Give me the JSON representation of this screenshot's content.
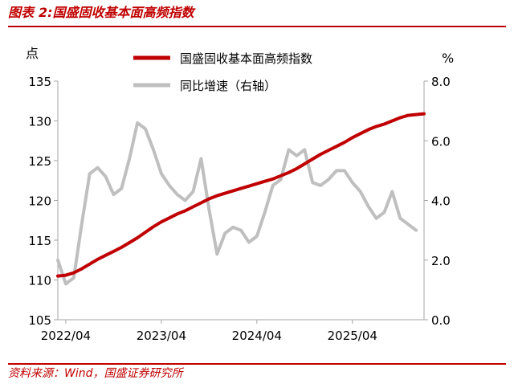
{
  "figure": {
    "label": "图表",
    "number": "2:",
    "name": "国盛固收基本面高频指数"
  },
  "source": "资料来源：Wind，国盛证券研究所",
  "colors": {
    "index_line": "#c00000",
    "yoy_line": "#bfbfbf",
    "axis": "#a6a6a6",
    "text": "#000000",
    "accent": "#c00000"
  },
  "chart_data": {
    "type": "line",
    "title": "",
    "x_ticks": [
      "2022/04",
      "2023/04",
      "2024/04",
      "2025/04"
    ],
    "x_range": [
      "2022/03",
      "2026/01"
    ],
    "left_axis": {
      "unit": "点",
      "range": [
        105,
        135
      ],
      "ticks": [
        "105",
        "110",
        "115",
        "120",
        "125",
        "130",
        "135"
      ]
    },
    "right_axis": {
      "unit": "%",
      "range": [
        0.0,
        8.0
      ],
      "ticks": [
        "0.0",
        "2.0",
        "4.0",
        "6.0",
        "8.0"
      ]
    },
    "grid": false,
    "legend_position": "top-center",
    "series": [
      {
        "name": "国盛固收基本面高频指数",
        "axis": "left",
        "x": [
          "2022/03",
          "2022/04",
          "2022/05",
          "2022/06",
          "2022/07",
          "2022/08",
          "2022/09",
          "2022/10",
          "2022/11",
          "2022/12",
          "2023/01",
          "2023/02",
          "2023/03",
          "2023/04",
          "2023/05",
          "2023/06",
          "2023/07",
          "2023/08",
          "2023/09",
          "2023/10",
          "2023/11",
          "2023/12",
          "2024/01",
          "2024/02",
          "2024/03",
          "2024/04",
          "2024/05",
          "2024/06",
          "2024/07",
          "2024/08",
          "2024/09",
          "2024/10",
          "2024/11",
          "2024/12",
          "2025/01",
          "2025/02",
          "2025/03",
          "2025/04",
          "2025/05",
          "2025/06",
          "2025/07",
          "2025/08",
          "2025/09",
          "2025/10",
          "2025/11",
          "2025/12",
          "2026/01"
        ],
        "values": [
          110.5,
          110.6,
          110.9,
          111.4,
          112.0,
          112.6,
          113.1,
          113.6,
          114.1,
          114.7,
          115.3,
          116.0,
          116.7,
          117.3,
          117.8,
          118.3,
          118.7,
          119.2,
          119.7,
          120.2,
          120.6,
          120.9,
          121.2,
          121.5,
          121.8,
          122.1,
          122.4,
          122.7,
          123.1,
          123.5,
          124.0,
          124.6,
          125.2,
          125.8,
          126.3,
          126.8,
          127.3,
          127.9,
          128.4,
          128.9,
          129.3,
          129.6,
          130.0,
          130.4,
          130.7,
          130.8,
          130.9
        ]
      },
      {
        "name": "同比增速（右轴）",
        "axis": "right",
        "x": [
          "2022/03",
          "2022/04",
          "2022/05",
          "2022/06",
          "2022/07",
          "2022/08",
          "2022/09",
          "2022/10",
          "2022/11",
          "2022/12",
          "2023/01",
          "2023/02",
          "2023/03",
          "2023/04",
          "2023/05",
          "2023/06",
          "2023/07",
          "2023/08",
          "2023/09",
          "2023/10",
          "2023/11",
          "2023/12",
          "2024/01",
          "2024/02",
          "2024/03",
          "2024/04",
          "2024/05",
          "2024/06",
          "2024/07",
          "2024/08",
          "2024/09",
          "2024/10",
          "2024/11",
          "2024/12",
          "2025/01",
          "2025/02",
          "2025/03",
          "2025/04",
          "2025/05",
          "2025/06",
          "2025/07",
          "2025/08",
          "2025/09",
          "2025/10",
          "2025/11",
          "2025/12"
        ],
        "values": [
          2.0,
          1.2,
          1.4,
          3.2,
          4.9,
          5.1,
          4.8,
          4.2,
          4.4,
          5.4,
          6.6,
          6.4,
          5.7,
          4.9,
          4.5,
          4.2,
          4.0,
          4.3,
          5.4,
          3.7,
          2.2,
          2.9,
          3.1,
          3.0,
          2.6,
          2.8,
          3.6,
          4.5,
          4.7,
          5.7,
          5.5,
          5.7,
          4.6,
          4.5,
          4.7,
          5.0,
          5.0,
          4.6,
          4.3,
          3.8,
          3.4,
          3.6,
          4.3,
          3.4,
          3.2,
          3.0
        ]
      }
    ]
  }
}
